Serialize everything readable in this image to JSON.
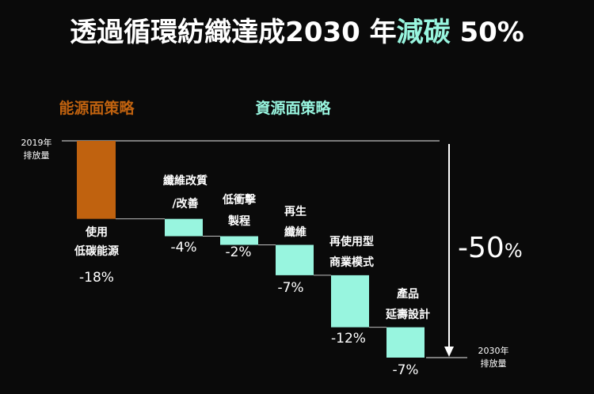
{
  "title": {
    "part1": "透過循環紡織達成2030 年",
    "part2": "減碳",
    "part3": " 50%"
  },
  "colors": {
    "background": "#0a0a0a",
    "energy": "#c0620f",
    "resource": "#98f5df",
    "text": "#ffffff",
    "line": "#bfbfbf"
  },
  "chart_data": {
    "type": "bar",
    "subtype": "waterfall",
    "groups": [
      {
        "name": "能源面策略",
        "color": "#c0620f"
      },
      {
        "name": "資源面策略",
        "color": "#98f5df"
      }
    ],
    "baseline": {
      "line1": "2019年",
      "line2": "排放量"
    },
    "target": {
      "line1": "2030年",
      "line2": "排放量"
    },
    "total_label": "-50",
    "total_unit": "%",
    "ylim": [
      -50,
      0
    ],
    "steps": [
      {
        "lines": [
          "使用",
          "低碳能源"
        ],
        "value": -18,
        "label": "-18%",
        "group": 0
      },
      {
        "lines": [
          "纖維改質",
          "/改善"
        ],
        "value": -4,
        "label": "-4%",
        "group": 1
      },
      {
        "lines": [
          "低衝擊",
          "製程"
        ],
        "value": -2,
        "label": "-2%",
        "group": 1
      },
      {
        "lines": [
          "再生",
          "纖維"
        ],
        "value": -7,
        "label": "-7%",
        "group": 1
      },
      {
        "lines": [
          "再使用型",
          "商業模式"
        ],
        "value": -12,
        "label": "-12%",
        "group": 1
      },
      {
        "lines": [
          "產品",
          "延壽設計"
        ],
        "value": -7,
        "label": "-7%",
        "group": 1
      }
    ]
  }
}
